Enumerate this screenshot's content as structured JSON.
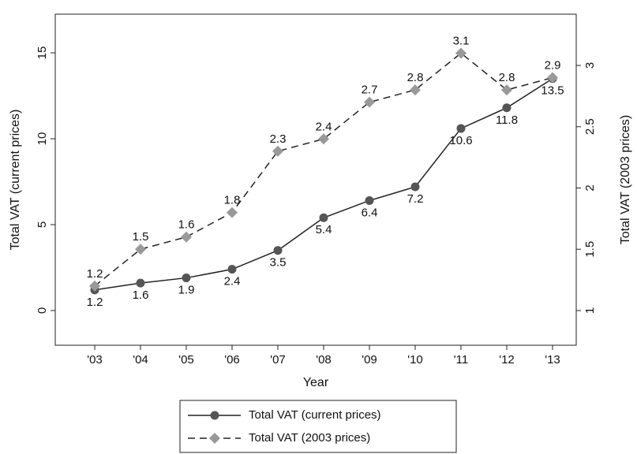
{
  "chart_data": {
    "type": "line",
    "x_label": "Year",
    "y_label": "Total VAT (current prices)",
    "y2_label": "Total VAT (2003 prices)",
    "categories": [
      "'03",
      "'04",
      "'05",
      "'06",
      "'07",
      "'08",
      "'09",
      "'10",
      "'11",
      "'12",
      "'13"
    ],
    "ylim": [
      -2.02,
      17.25
    ],
    "yticks": [
      0,
      5,
      10,
      15
    ],
    "y2lim": [
      0.717,
      3.418
    ],
    "y2ticks": [
      1,
      1.5,
      2,
      2.5,
      3
    ],
    "grid": false,
    "series": [
      {
        "name": "Total VAT (current prices)",
        "color": "#555555",
        "line_color": "#222222",
        "style": "solid",
        "marker": "circle",
        "label_position": "below",
        "values": [
          1.2,
          1.6,
          1.9,
          2.4,
          3.5,
          5.4,
          6.4,
          7.2,
          10.6,
          11.8,
          13.5
        ]
      },
      {
        "name": "Total VAT (2003 prices)",
        "color": "#999999",
        "line_color": "#222222",
        "style": "dashed",
        "marker": "diamond",
        "label_position": "above",
        "axis": "y2",
        "values": [
          1.2,
          1.5,
          1.6,
          1.8,
          2.3,
          2.4,
          2.7,
          2.8,
          3.1,
          2.8,
          2.9
        ]
      }
    ]
  }
}
